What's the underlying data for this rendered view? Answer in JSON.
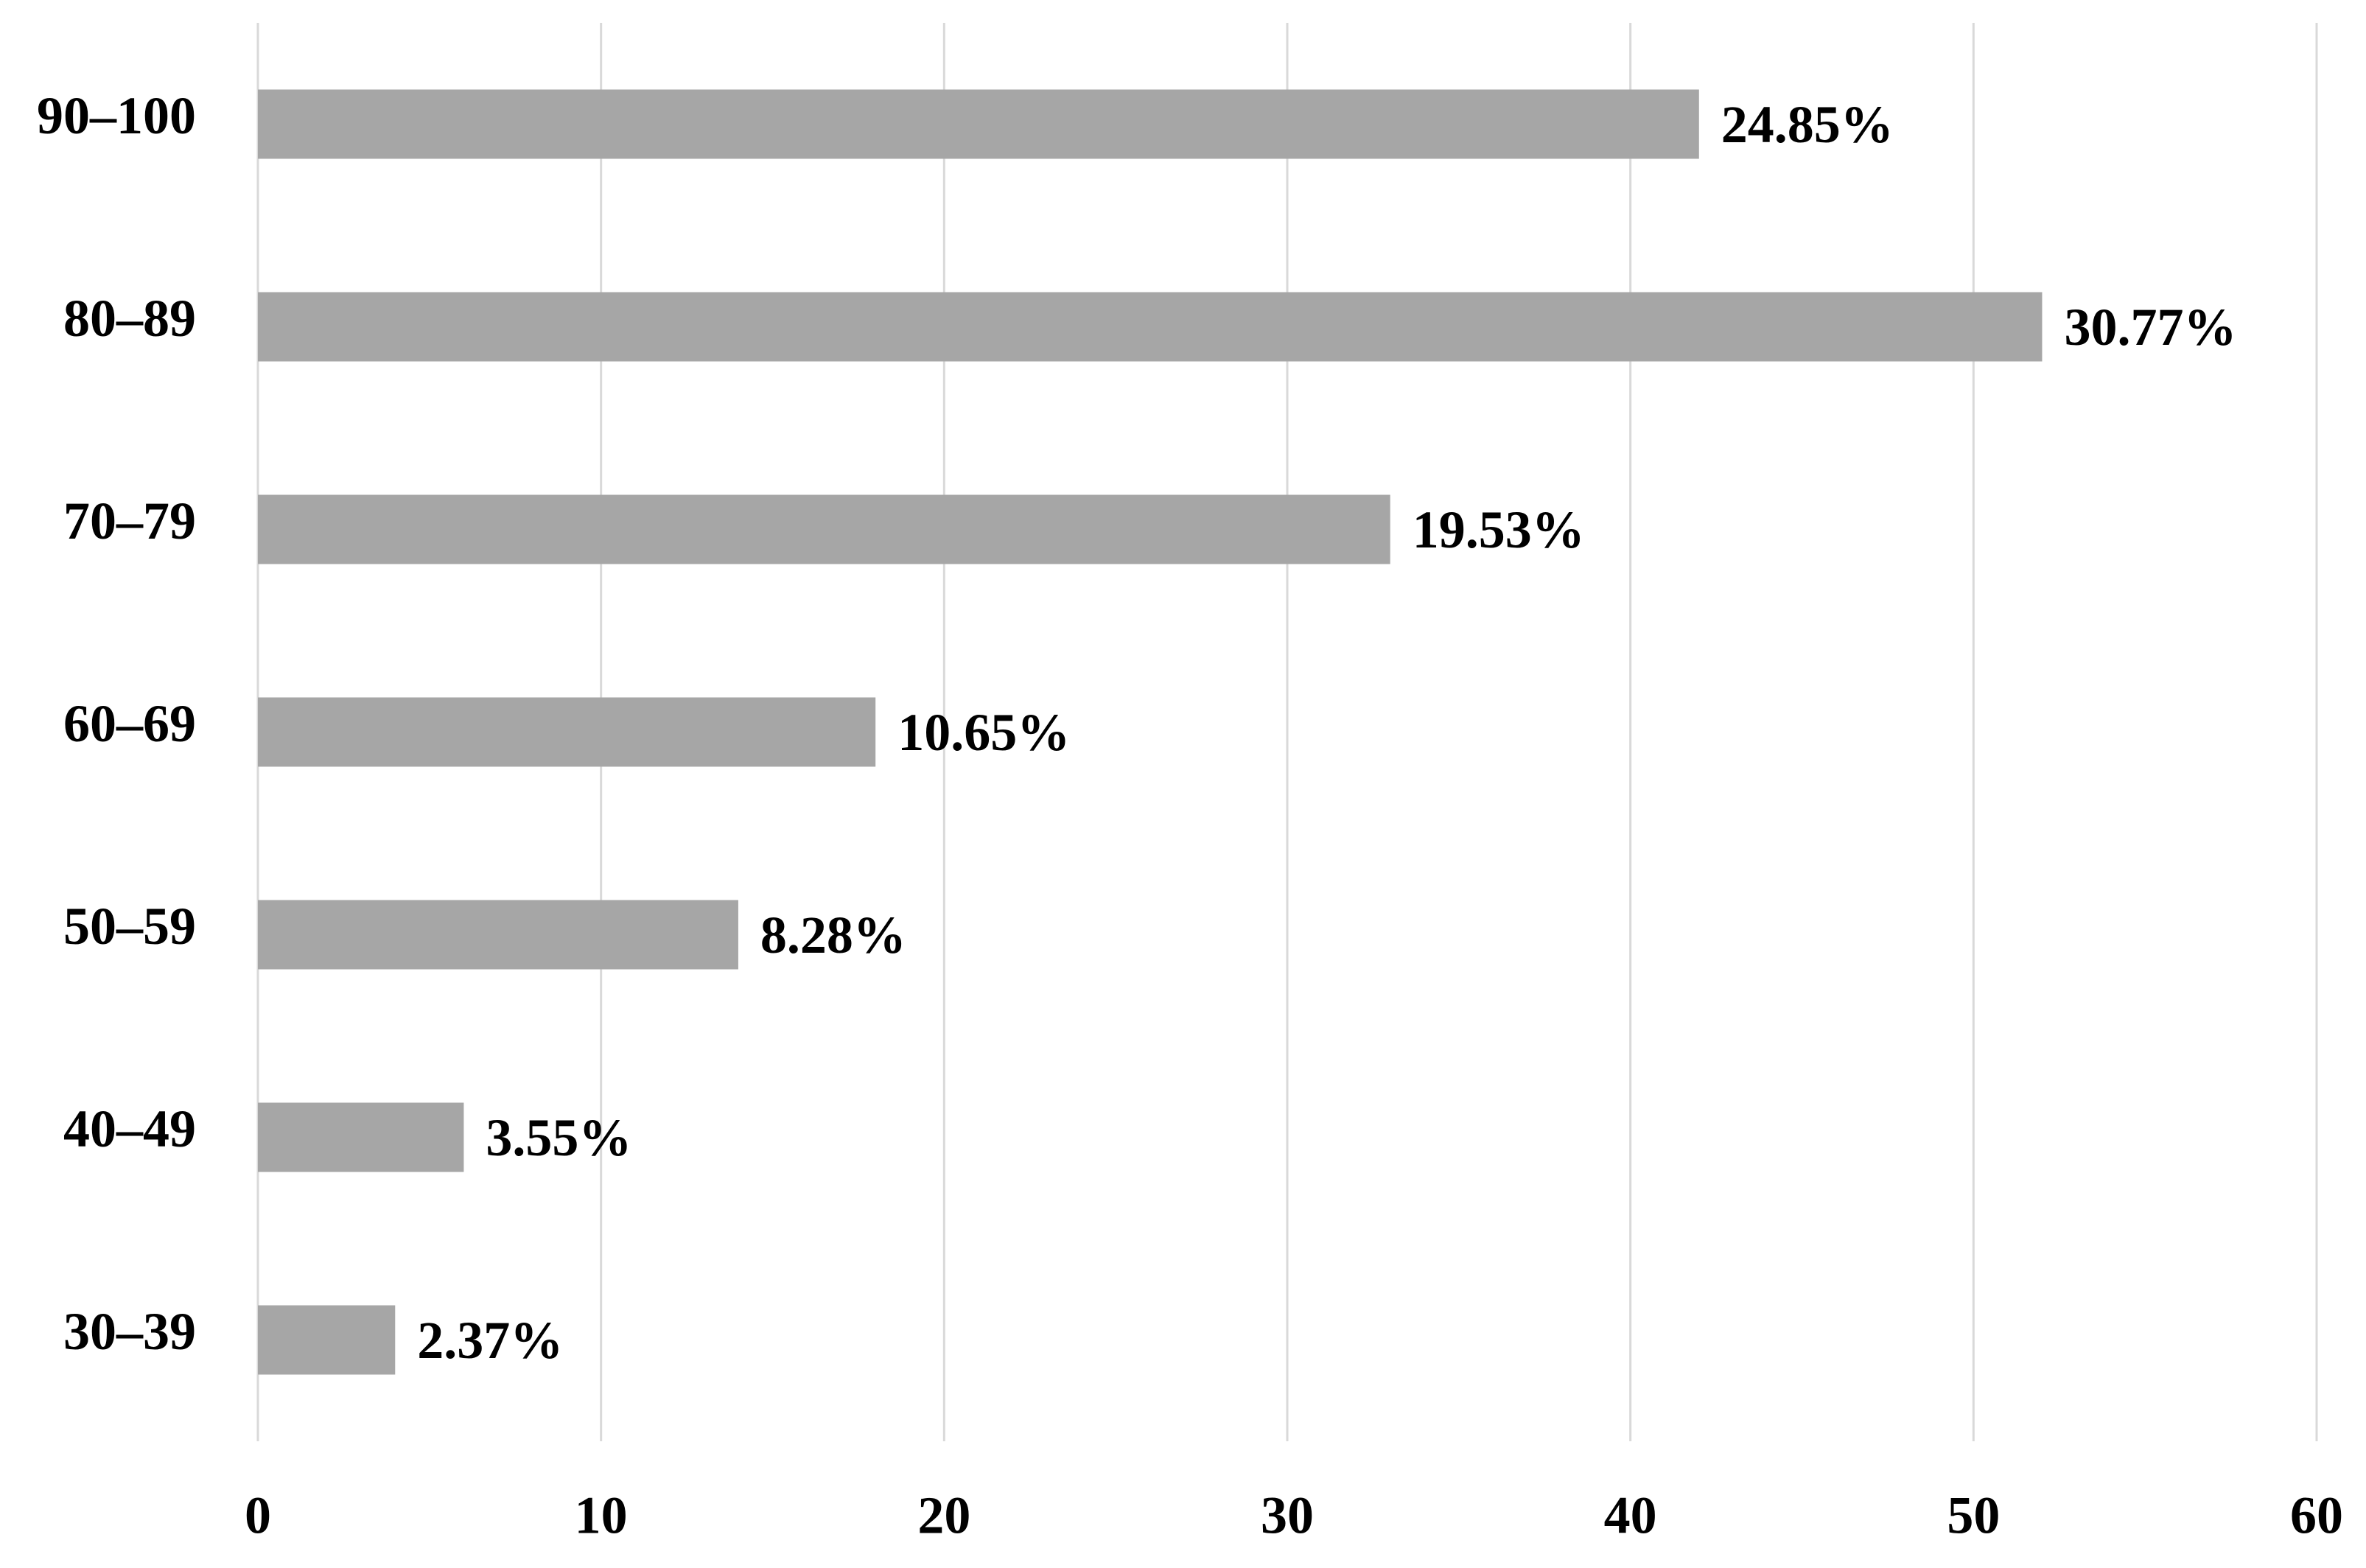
{
  "chart_data": {
    "type": "bar",
    "orientation": "horizontal",
    "categories": [
      "90–100",
      "80–89",
      "70–79",
      "60–69",
      "50–59",
      "40–49",
      "30–39"
    ],
    "values": [
      42,
      52,
      33,
      18,
      14,
      6,
      4
    ],
    "annotations": [
      "24.85%",
      "30.77%",
      "19.53%",
      "10.65%",
      "8.28%",
      "3.55%",
      "2.37%"
    ],
    "color": "#a6a6a6",
    "xlim": [
      0,
      60
    ],
    "xticks": [
      0,
      10,
      20,
      30,
      40,
      50,
      60
    ],
    "grid": true
  }
}
